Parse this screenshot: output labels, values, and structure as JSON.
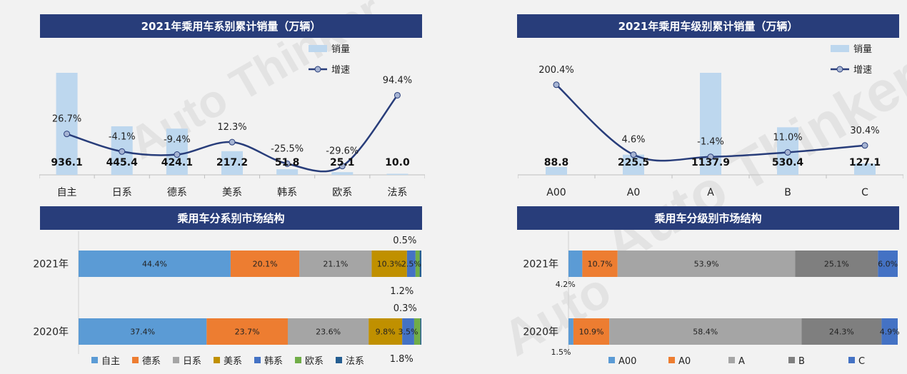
{
  "colors": {
    "title_bg": "#283d7a",
    "bar": "#bdd7ee",
    "line": "#283d7a",
    "marker_fill": "#a6b4d3"
  },
  "chart_data": [
    {
      "type": "bar",
      "title": "2021年乘用车系别累计销量（万辆）",
      "categories": [
        "自主",
        "日系",
        "德系",
        "美系",
        "韩系",
        "欧系",
        "法系"
      ],
      "series": [
        {
          "name": "销量",
          "type": "bar",
          "values": [
            936.1,
            445.4,
            424.1,
            217.2,
            51.8,
            25.1,
            10.0
          ],
          "labels": [
            "936.1",
            "445.4",
            "424.1",
            "217.2",
            "51.8",
            "25.1",
            "10.0"
          ]
        },
        {
          "name": "增速",
          "type": "line",
          "values": [
            26.7,
            -4.1,
            -9.4,
            12.3,
            -25.5,
            -29.6,
            94.4
          ],
          "labels": [
            "26.7%",
            "-4.1%",
            "-9.4%",
            "12.3%",
            "-25.5%",
            "-29.6%",
            "94.4%"
          ]
        }
      ],
      "legend": "top-right"
    },
    {
      "type": "bar",
      "title": "2021年乘用车级别累计销量（万辆）",
      "categories": [
        "A00",
        "A0",
        "A",
        "B",
        "C"
      ],
      "series": [
        {
          "name": "销量",
          "type": "bar",
          "values": [
            88.8,
            225.5,
            1137.9,
            530.4,
            127.1
          ],
          "labels": [
            "88.8",
            "225.5",
            "1137.9",
            "530.4",
            "127.1"
          ]
        },
        {
          "name": "增速",
          "type": "line",
          "values": [
            200.4,
            4.6,
            -1.4,
            11.0,
            30.4
          ],
          "labels": [
            "200.4%",
            "4.6%",
            "-1.4%",
            "11.0%",
            "30.4%"
          ]
        }
      ],
      "legend": "top-right"
    },
    {
      "type": "bar",
      "title": "乘用车分系别市场结构",
      "stacked": true,
      "orientation": "horizontal",
      "categories": [
        "2021年",
        "2020年"
      ],
      "series": [
        {
          "name": "自主",
          "color": "#5b9bd5",
          "values": [
            44.4,
            37.4
          ]
        },
        {
          "name": "德系",
          "color": "#ed7d31",
          "values": [
            20.1,
            23.7
          ]
        },
        {
          "name": "日系",
          "color": "#a5a5a5",
          "values": [
            21.1,
            23.6
          ]
        },
        {
          "name": "美系",
          "color": "#c09000",
          "values": [
            10.3,
            9.8
          ]
        },
        {
          "name": "韩系",
          "color": "#4472c4",
          "values": [
            2.5,
            3.5
          ]
        },
        {
          "name": "欧系",
          "color": "#70ad47",
          "values": [
            1.2,
            1.8
          ]
        },
        {
          "name": "法系",
          "color": "#255e91",
          "values": [
            0.5,
            0.3
          ]
        }
      ],
      "labels": [
        [
          {
            "text": "44.4%",
            "series": 0,
            "pos": "inside"
          },
          {
            "text": "20.1%",
            "series": 1,
            "pos": "inside"
          },
          {
            "text": "21.1%",
            "series": 2,
            "pos": "inside"
          },
          {
            "text": "10.3%",
            "series": 3,
            "pos": "inside"
          },
          {
            "text": "2.5%",
            "series": 4,
            "pos": "inside"
          },
          {
            "text": "0.5%",
            "series": 6,
            "pos": "above"
          },
          {
            "text": "1.2%",
            "series": 5,
            "pos": "below"
          }
        ],
        [
          {
            "text": "37.4%",
            "series": 0,
            "pos": "inside"
          },
          {
            "text": "23.7%",
            "series": 1,
            "pos": "inside"
          },
          {
            "text": "23.6%",
            "series": 2,
            "pos": "inside"
          },
          {
            "text": "9.8%",
            "series": 3,
            "pos": "inside"
          },
          {
            "text": "3.5%",
            "series": 4,
            "pos": "inside"
          },
          {
            "text": "0.3%",
            "series": 6,
            "pos": "above"
          },
          {
            "text": "1.8%",
            "series": 5,
            "pos": "below"
          }
        ]
      ],
      "legend": "bottom"
    },
    {
      "type": "bar",
      "title": "乘用车分级别市场结构",
      "stacked": true,
      "orientation": "horizontal",
      "categories": [
        "2021年",
        "2020年"
      ],
      "series": [
        {
          "name": "A00",
          "color": "#5b9bd5",
          "values": [
            4.2,
            1.5
          ]
        },
        {
          "name": "A0",
          "color": "#ed7d31",
          "values": [
            10.7,
            10.9
          ]
        },
        {
          "name": "A",
          "color": "#a5a5a5",
          "values": [
            53.9,
            58.4
          ]
        },
        {
          "name": "B",
          "color": "#7f7f7f",
          "values": [
            25.1,
            24.3
          ]
        },
        {
          "name": "C",
          "color": "#4472c4",
          "values": [
            6.0,
            4.9
          ]
        }
      ],
      "labels": [
        [
          {
            "text": "4.2%",
            "series": 0,
            "pos": "below"
          },
          {
            "text": "10.7%",
            "series": 1,
            "pos": "inside"
          },
          {
            "text": "53.9%",
            "series": 2,
            "pos": "inside"
          },
          {
            "text": "25.1%",
            "series": 3,
            "pos": "inside"
          },
          {
            "text": "6.0%",
            "series": 4,
            "pos": "inside"
          }
        ],
        [
          {
            "text": "1.5%",
            "series": 0,
            "pos": "below"
          },
          {
            "text": "10.9%",
            "series": 1,
            "pos": "inside"
          },
          {
            "text": "58.4%",
            "series": 2,
            "pos": "inside"
          },
          {
            "text": "24.3%",
            "series": 3,
            "pos": "inside"
          },
          {
            "text": "4.9%",
            "series": 4,
            "pos": "inside"
          }
        ]
      ],
      "legend": "bottom"
    }
  ]
}
